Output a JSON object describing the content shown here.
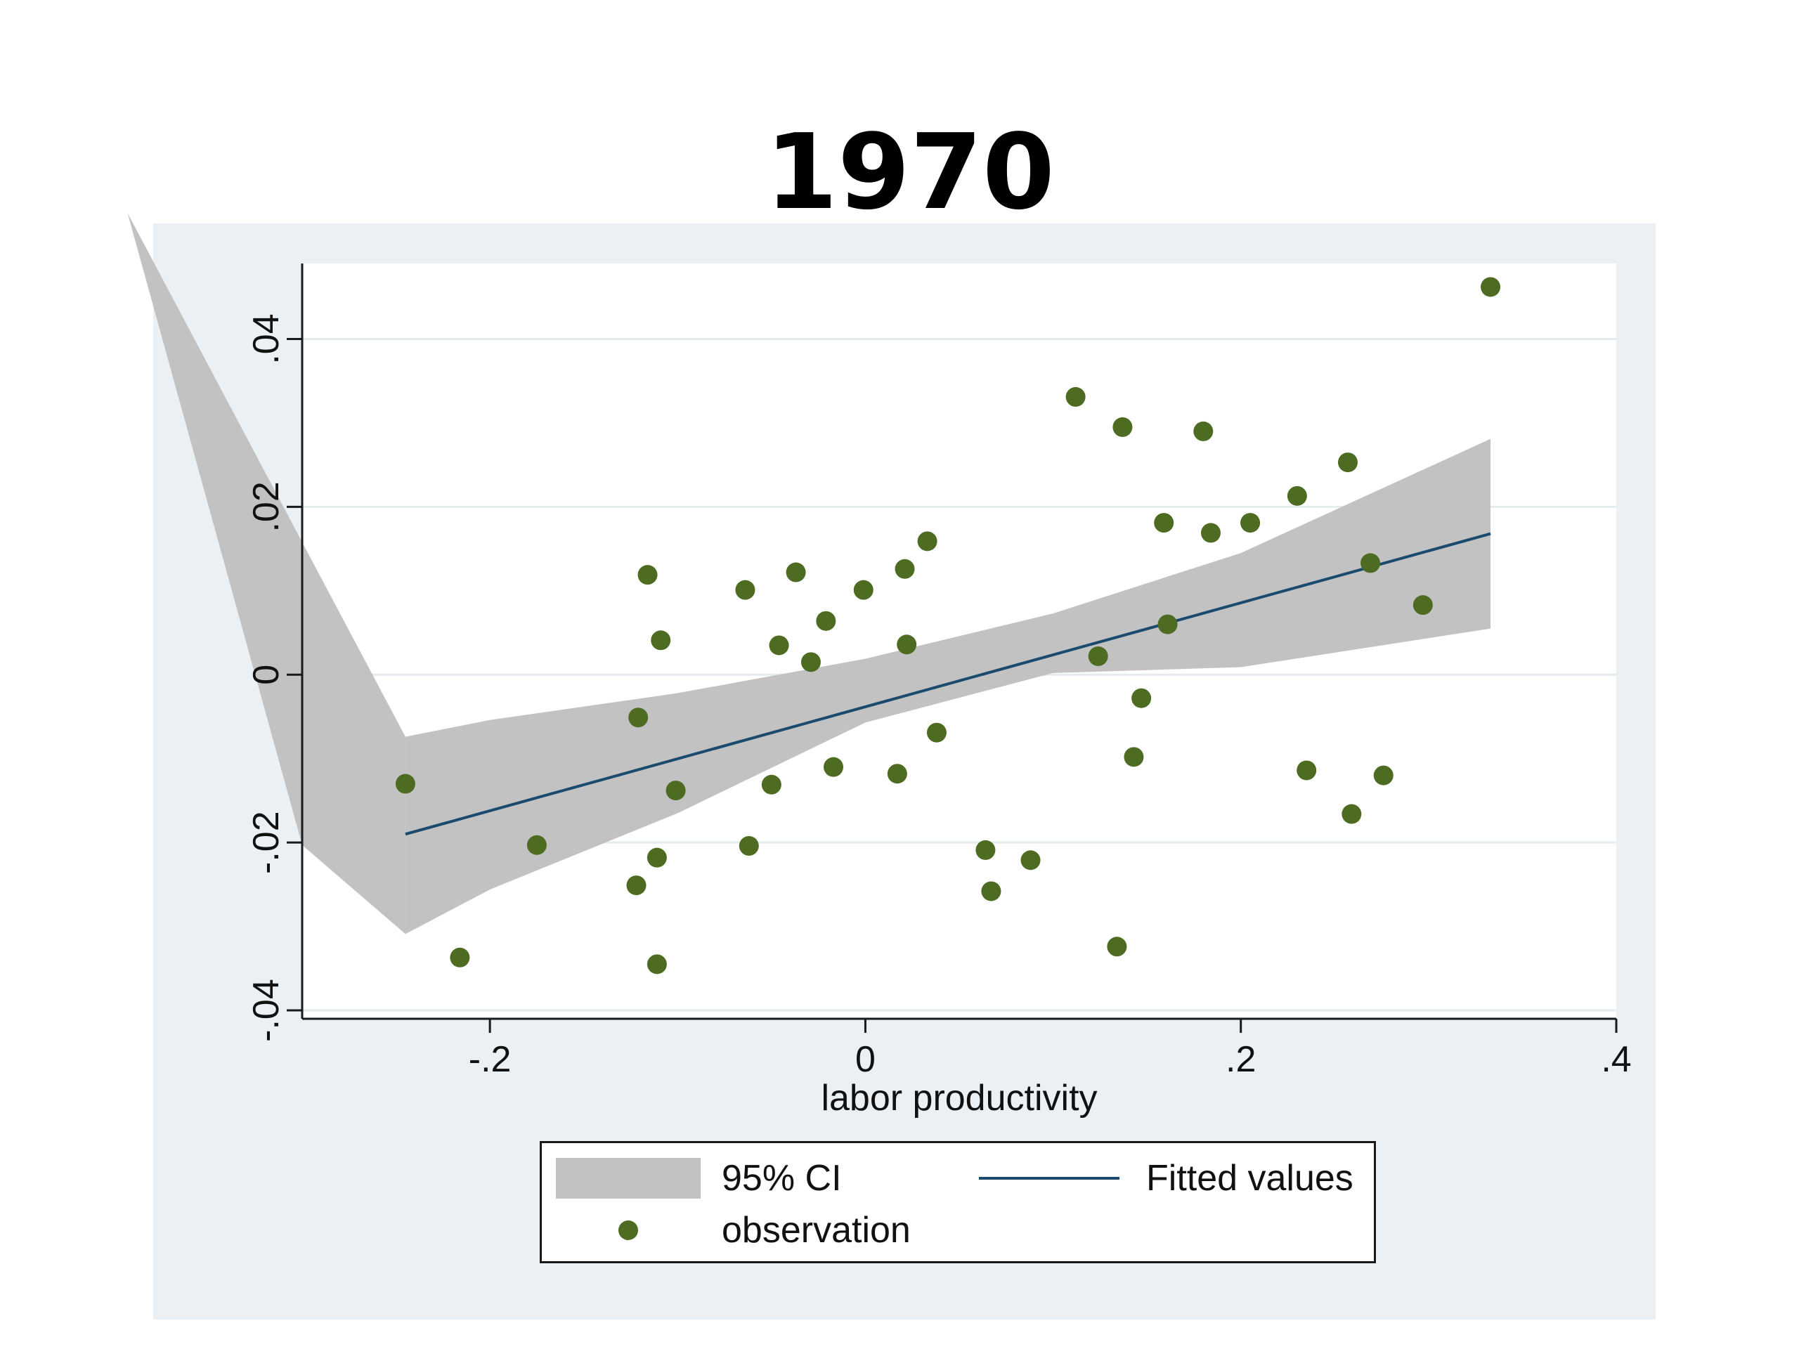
{
  "chart_data": {
    "type": "scatter",
    "title": "1970",
    "xlabel": "labor productivity",
    "ylabel": "",
    "xlim": [
      -0.3,
      0.4
    ],
    "ylim": [
      -0.041,
      0.049
    ],
    "x_ticks": [
      -0.2,
      0,
      0.2,
      0.4
    ],
    "x_tick_labels": [
      "-.2",
      "0",
      ".2",
      ".4"
    ],
    "y_ticks": [
      -0.04,
      -0.02,
      0,
      0.02,
      0.04
    ],
    "y_tick_labels": [
      "-.04",
      "-.02",
      "0",
      ".02",
      ".04"
    ],
    "grid": true,
    "legend_position": "bottom",
    "series": [
      {
        "name": "observation",
        "type": "scatter",
        "color": "#4e6b22",
        "points": [
          [
            -0.245,
            -0.013
          ],
          [
            -0.216,
            -0.0337
          ],
          [
            -0.175,
            -0.0203
          ],
          [
            -0.122,
            -0.0251
          ],
          [
            -0.121,
            -0.0051
          ],
          [
            -0.116,
            0.0119
          ],
          [
            -0.111,
            -0.0218
          ],
          [
            -0.111,
            -0.0345
          ],
          [
            -0.109,
            0.0041
          ],
          [
            -0.101,
            -0.0138
          ],
          [
            -0.064,
            0.0101
          ],
          [
            -0.062,
            -0.0204
          ],
          [
            -0.05,
            -0.0131
          ],
          [
            -0.046,
            0.0035
          ],
          [
            -0.037,
            0.0122
          ],
          [
            -0.029,
            0.0015
          ],
          [
            -0.021,
            0.0064
          ],
          [
            -0.017,
            -0.011
          ],
          [
            -0.001,
            0.0101
          ],
          [
            0.017,
            -0.0118
          ],
          [
            0.021,
            0.0126
          ],
          [
            0.022,
            0.0036
          ],
          [
            0.033,
            0.0159
          ],
          [
            0.038,
            -0.0069
          ],
          [
            0.064,
            -0.0209
          ],
          [
            0.067,
            -0.0258
          ],
          [
            0.088,
            -0.0221
          ],
          [
            0.112,
            0.0331
          ],
          [
            0.124,
            0.0022
          ],
          [
            0.134,
            -0.0324
          ],
          [
            0.137,
            0.0295
          ],
          [
            0.143,
            -0.0098
          ],
          [
            0.147,
            -0.0028
          ],
          [
            0.159,
            0.0181
          ],
          [
            0.161,
            0.006
          ],
          [
            0.18,
            0.029
          ],
          [
            0.184,
            0.0169
          ],
          [
            0.205,
            0.0181
          ],
          [
            0.23,
            0.0213
          ],
          [
            0.235,
            -0.0114
          ],
          [
            0.257,
            0.0253
          ],
          [
            0.259,
            -0.0166
          ],
          [
            0.269,
            0.0133
          ],
          [
            0.276,
            -0.012
          ],
          [
            0.297,
            0.0083
          ],
          [
            0.333,
            0.0462
          ]
        ]
      },
      {
        "name": "Fitted values",
        "type": "line",
        "color": "#1a4a6e",
        "x": [
          -0.245,
          0.333
        ],
        "y": [
          -0.019,
          0.0168
        ]
      },
      {
        "name": "95% CI",
        "type": "area",
        "color": "#c2c2c2",
        "x": [
          -0.245,
          -0.2,
          -0.1,
          0,
          0.1,
          0.2,
          0.333
        ],
        "upper": [
          -0.0074,
          -0.0054,
          -0.0022,
          0.0019,
          0.0073,
          0.0145,
          0.0281
        ],
        "lower": [
          -0.0309,
          -0.0256,
          -0.0165,
          -0.0057,
          0.0002,
          0.0009,
          0.0055
        ],
        "spill_outside_plot": [
          [
            -0.393,
            0.055
          ],
          [
            -0.3,
            -0.0203
          ]
        ]
      }
    ],
    "legend": [
      "95% CI",
      "Fitted values",
      "observation"
    ]
  }
}
